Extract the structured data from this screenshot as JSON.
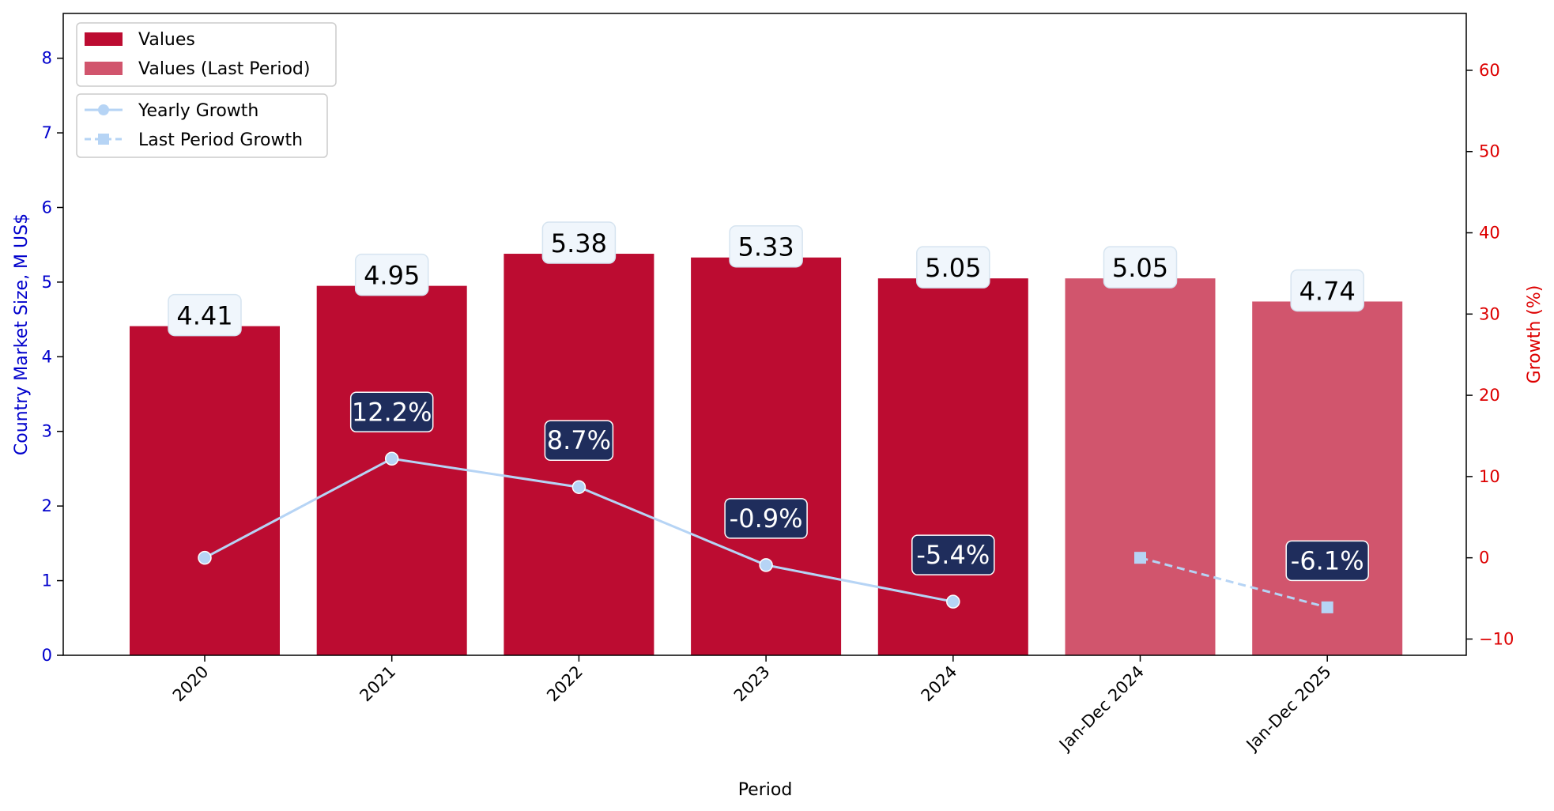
{
  "chart_data": {
    "type": "bar",
    "categories": [
      "2020",
      "2021",
      "2022",
      "2023",
      "2024",
      "Jan-Dec 2024",
      "Jan-Dec 2025"
    ],
    "values": [
      4.41,
      4.95,
      5.38,
      5.33,
      5.05,
      5.05,
      4.74
    ],
    "value_labels": [
      "4.41",
      "4.95",
      "5.38",
      "5.33",
      "5.05",
      "5.05",
      "4.74"
    ],
    "bar_series": [
      "Values",
      "Values",
      "Values",
      "Values",
      "Values",
      "Values (Last Period)",
      "Values (Last Period)"
    ],
    "growth_series": [
      {
        "name": "Yearly Growth",
        "x": [
          "2020",
          "2021",
          "2022",
          "2023",
          "2024"
        ],
        "values": [
          0,
          12.2,
          8.7,
          -0.9,
          -5.4
        ],
        "labels": [
          "",
          "12.2%",
          "8.7%",
          "-0.9%",
          "-5.4%"
        ],
        "style": "solid",
        "marker": "circle"
      },
      {
        "name": "Last Period Growth",
        "x": [
          "Jan-Dec 2024",
          "Jan-Dec 2025"
        ],
        "values": [
          0,
          -6.1
        ],
        "labels": [
          "",
          "-6.1%"
        ],
        "style": "dashed",
        "marker": "square"
      }
    ],
    "xlabel": "Period",
    "ylabel": "Country Market Size, M US$",
    "y2label": "Growth (%)",
    "ylim": [
      0,
      8.6
    ],
    "y2lim": [
      -12,
      67
    ],
    "yticks": [
      0,
      1,
      2,
      3,
      4,
      5,
      6,
      7,
      8
    ],
    "y2ticks": [
      -10,
      0,
      10,
      20,
      30,
      40,
      50,
      60
    ],
    "y2tick_labels": [
      "−10",
      "0",
      "10",
      "20",
      "30",
      "40",
      "50",
      "60"
    ],
    "legend_bars": [
      "Values",
      "Values (Last Period)"
    ],
    "legend_lines": [
      "Yearly Growth",
      "Last Period Growth"
    ],
    "legend_position": "top-left",
    "grid": false,
    "colors": {
      "values": "#bc0c31",
      "values_last_period": "#d1556d",
      "growth_line": "#b6d4f5",
      "growth_label_bg": "#1f2d5c",
      "value_label_bg": "#f0f6fc",
      "left_axis": "#0000cc",
      "right_axis": "#dd0000"
    }
  }
}
